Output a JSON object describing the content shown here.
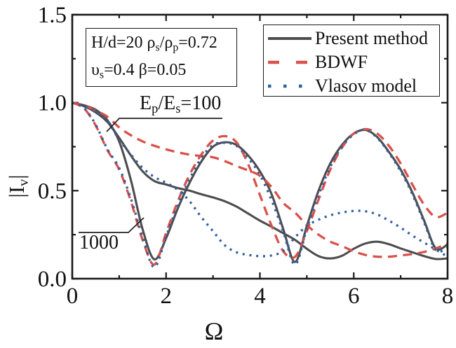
{
  "colors": {
    "present": "#4d4d50",
    "bdwf": "#d8514a",
    "vlasov": "#30609f",
    "axis": "#1a1a1a"
  },
  "axes": {
    "x": {
      "label": "Ω",
      "tick_labels": [
        "0",
        "2",
        "4",
        "6",
        "8"
      ]
    },
    "y": {
      "label_parts": [
        {
          "t": "|I"
        },
        {
          "s": "v"
        },
        {
          "t": "|"
        }
      ],
      "tick_labels": [
        "0.0",
        "0.5",
        "1.0",
        "1.5"
      ]
    }
  },
  "legend": {
    "items": [
      {
        "label": "Present method",
        "style": "solid",
        "color": "present"
      },
      {
        "label": "BDWF",
        "style": "dashed",
        "color": "bdwf"
      },
      {
        "label": "Vlasov model",
        "style": "dotted",
        "color": "vlasov"
      }
    ]
  },
  "param_box": {
    "line1_parts": [
      {
        "t": "H/d=20  ρ"
      },
      {
        "s": "s"
      },
      {
        "t": "/ρ"
      },
      {
        "s": "p"
      },
      {
        "t": "=0.72"
      }
    ],
    "line2_parts": [
      {
        "t": "υ"
      },
      {
        "s": "s"
      },
      {
        "t": "=0.4   β=0.05"
      }
    ]
  },
  "annotations": {
    "ratio_100": {
      "parts": [
        {
          "t": "E"
        },
        {
          "s": "p"
        },
        {
          "t": "/E"
        },
        {
          "s": "s"
        },
        {
          "t": "=100"
        }
      ]
    },
    "ratio_1000": {
      "text": "1000"
    }
  },
  "chart_data": {
    "type": "line",
    "title": "",
    "xlabel": "Ω",
    "ylabel": "|Iv|",
    "xlim": [
      0,
      8
    ],
    "ylim": [
      0,
      1.5
    ],
    "grid": false,
    "legend_position": "top-right",
    "x_major": [
      0,
      2,
      4,
      6,
      8
    ],
    "x_minor": [
      1,
      3,
      5,
      7
    ],
    "y_major": [
      0,
      0.5,
      1.0,
      1.5
    ],
    "y_minor": [
      0.25,
      0.75,
      1.25
    ],
    "x": [
      0,
      0.25,
      0.5,
      0.75,
      1,
      1.25,
      1.5,
      1.75,
      2,
      2.25,
      2.5,
      2.75,
      3,
      3.25,
      3.5,
      3.75,
      4,
      4.25,
      4.5,
      4.75,
      5,
      5.25,
      5.5,
      5.75,
      6,
      6.25,
      6.5,
      6.75,
      7,
      7.25,
      7.5,
      7.75,
      8
    ],
    "series": [
      {
        "id": "present-100",
        "name": "Present method",
        "group": "Ep/Es=100",
        "color": "present",
        "style": "solid",
        "values": [
          1.0,
          0.98,
          0.945,
          0.89,
          0.8,
          0.7,
          0.61,
          0.555,
          0.535,
          0.515,
          0.5,
          0.48,
          0.462,
          0.44,
          0.41,
          0.37,
          0.33,
          0.295,
          0.258,
          0.22,
          0.17,
          0.128,
          0.115,
          0.13,
          0.17,
          0.2,
          0.21,
          0.196,
          0.172,
          0.15,
          0.128,
          0.112,
          0.115
        ]
      },
      {
        "id": "present-1000",
        "name": "Present method",
        "group": "Ep/Es=1000",
        "color": "present",
        "style": "solid",
        "values": [
          1.0,
          0.985,
          0.96,
          0.9,
          0.78,
          0.56,
          0.28,
          0.11,
          0.23,
          0.4,
          0.545,
          0.665,
          0.75,
          0.775,
          0.76,
          0.7,
          0.61,
          0.48,
          0.28,
          0.095,
          0.3,
          0.5,
          0.655,
          0.76,
          0.825,
          0.845,
          0.805,
          0.72,
          0.62,
          0.49,
          0.33,
          0.172,
          0.195
        ]
      },
      {
        "id": "bdwf-100",
        "name": "BDWF",
        "group": "Ep/Es=100",
        "color": "bdwf",
        "style": "dashed",
        "values": [
          1.0,
          0.985,
          0.955,
          0.92,
          0.86,
          0.815,
          0.78,
          0.755,
          0.735,
          0.718,
          0.705,
          0.697,
          0.69,
          0.668,
          0.64,
          0.615,
          0.585,
          0.52,
          0.43,
          0.375,
          0.305,
          0.25,
          0.21,
          0.185,
          0.155,
          0.135,
          0.125,
          0.125,
          0.132,
          0.14,
          0.152,
          0.172,
          0.2
        ]
      },
      {
        "id": "bdwf-1000",
        "name": "BDWF",
        "group": "Ep/Es=1000",
        "color": "bdwf",
        "style": "dashed",
        "values": [
          1.0,
          0.968,
          0.87,
          0.73,
          0.62,
          0.44,
          0.22,
          0.08,
          0.26,
          0.44,
          0.59,
          0.705,
          0.785,
          0.81,
          0.775,
          0.65,
          0.475,
          0.3,
          0.155,
          0.125,
          0.27,
          0.45,
          0.62,
          0.745,
          0.825,
          0.85,
          0.825,
          0.755,
          0.655,
          0.535,
          0.42,
          0.35,
          0.375
        ]
      },
      {
        "id": "vlasov-100",
        "name": "Vlasov model",
        "group": "Ep/Es=100",
        "color": "vlasov",
        "style": "dotted",
        "values": [
          1.0,
          0.98,
          0.95,
          0.895,
          0.79,
          0.705,
          0.63,
          0.578,
          0.545,
          0.505,
          0.44,
          0.35,
          0.27,
          0.19,
          0.15,
          0.135,
          0.128,
          0.132,
          0.158,
          0.235,
          0.3,
          0.335,
          0.36,
          0.376,
          0.385,
          0.383,
          0.365,
          0.33,
          0.29,
          0.245,
          0.205,
          0.165,
          0.125
        ]
      },
      {
        "id": "vlasov-1000",
        "name": "Vlasov model",
        "group": "Ep/Es=1000",
        "color": "vlasov",
        "style": "dotted",
        "values": [
          1.0,
          0.97,
          0.875,
          0.735,
          0.63,
          0.455,
          0.235,
          0.065,
          0.24,
          0.42,
          0.565,
          0.685,
          0.76,
          0.772,
          0.755,
          0.685,
          0.59,
          0.445,
          0.265,
          0.08,
          0.285,
          0.475,
          0.635,
          0.75,
          0.82,
          0.845,
          0.8,
          0.715,
          0.61,
          0.48,
          0.32,
          0.162,
          0.175
        ]
      }
    ]
  }
}
